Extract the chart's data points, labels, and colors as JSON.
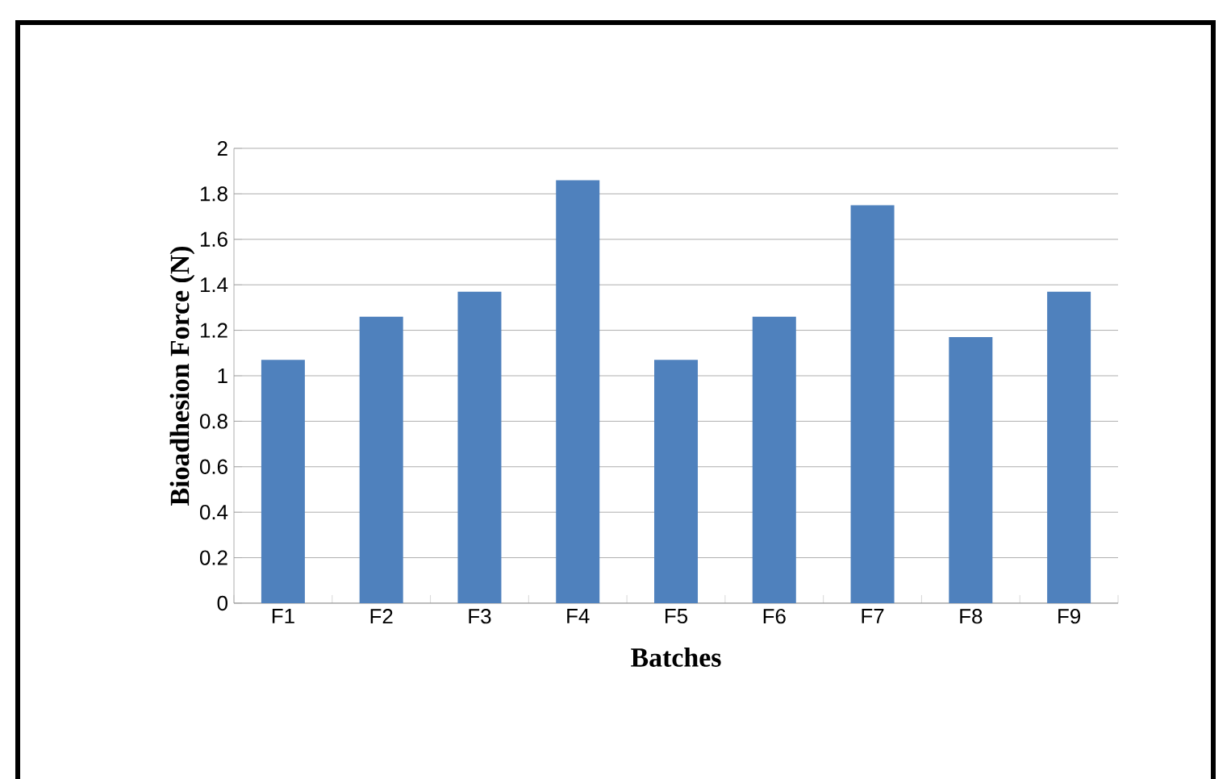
{
  "chart_data": {
    "type": "bar",
    "xlabel": "Batches",
    "ylabel": "Bioadhesion Force (N)",
    "categories": [
      "F1",
      "F2",
      "F3",
      "F4",
      "F5",
      "F6",
      "F7",
      "F8",
      "F9"
    ],
    "values": [
      1.07,
      1.26,
      1.37,
      1.86,
      1.07,
      1.26,
      1.75,
      1.17,
      1.37
    ],
    "color": "#4f81bd",
    "ylim": [
      0,
      2
    ],
    "yticks": [
      0,
      0.2,
      0.4,
      0.6,
      0.8,
      1,
      1.2,
      1.4,
      1.6,
      1.8,
      2
    ],
    "grid": "y"
  }
}
